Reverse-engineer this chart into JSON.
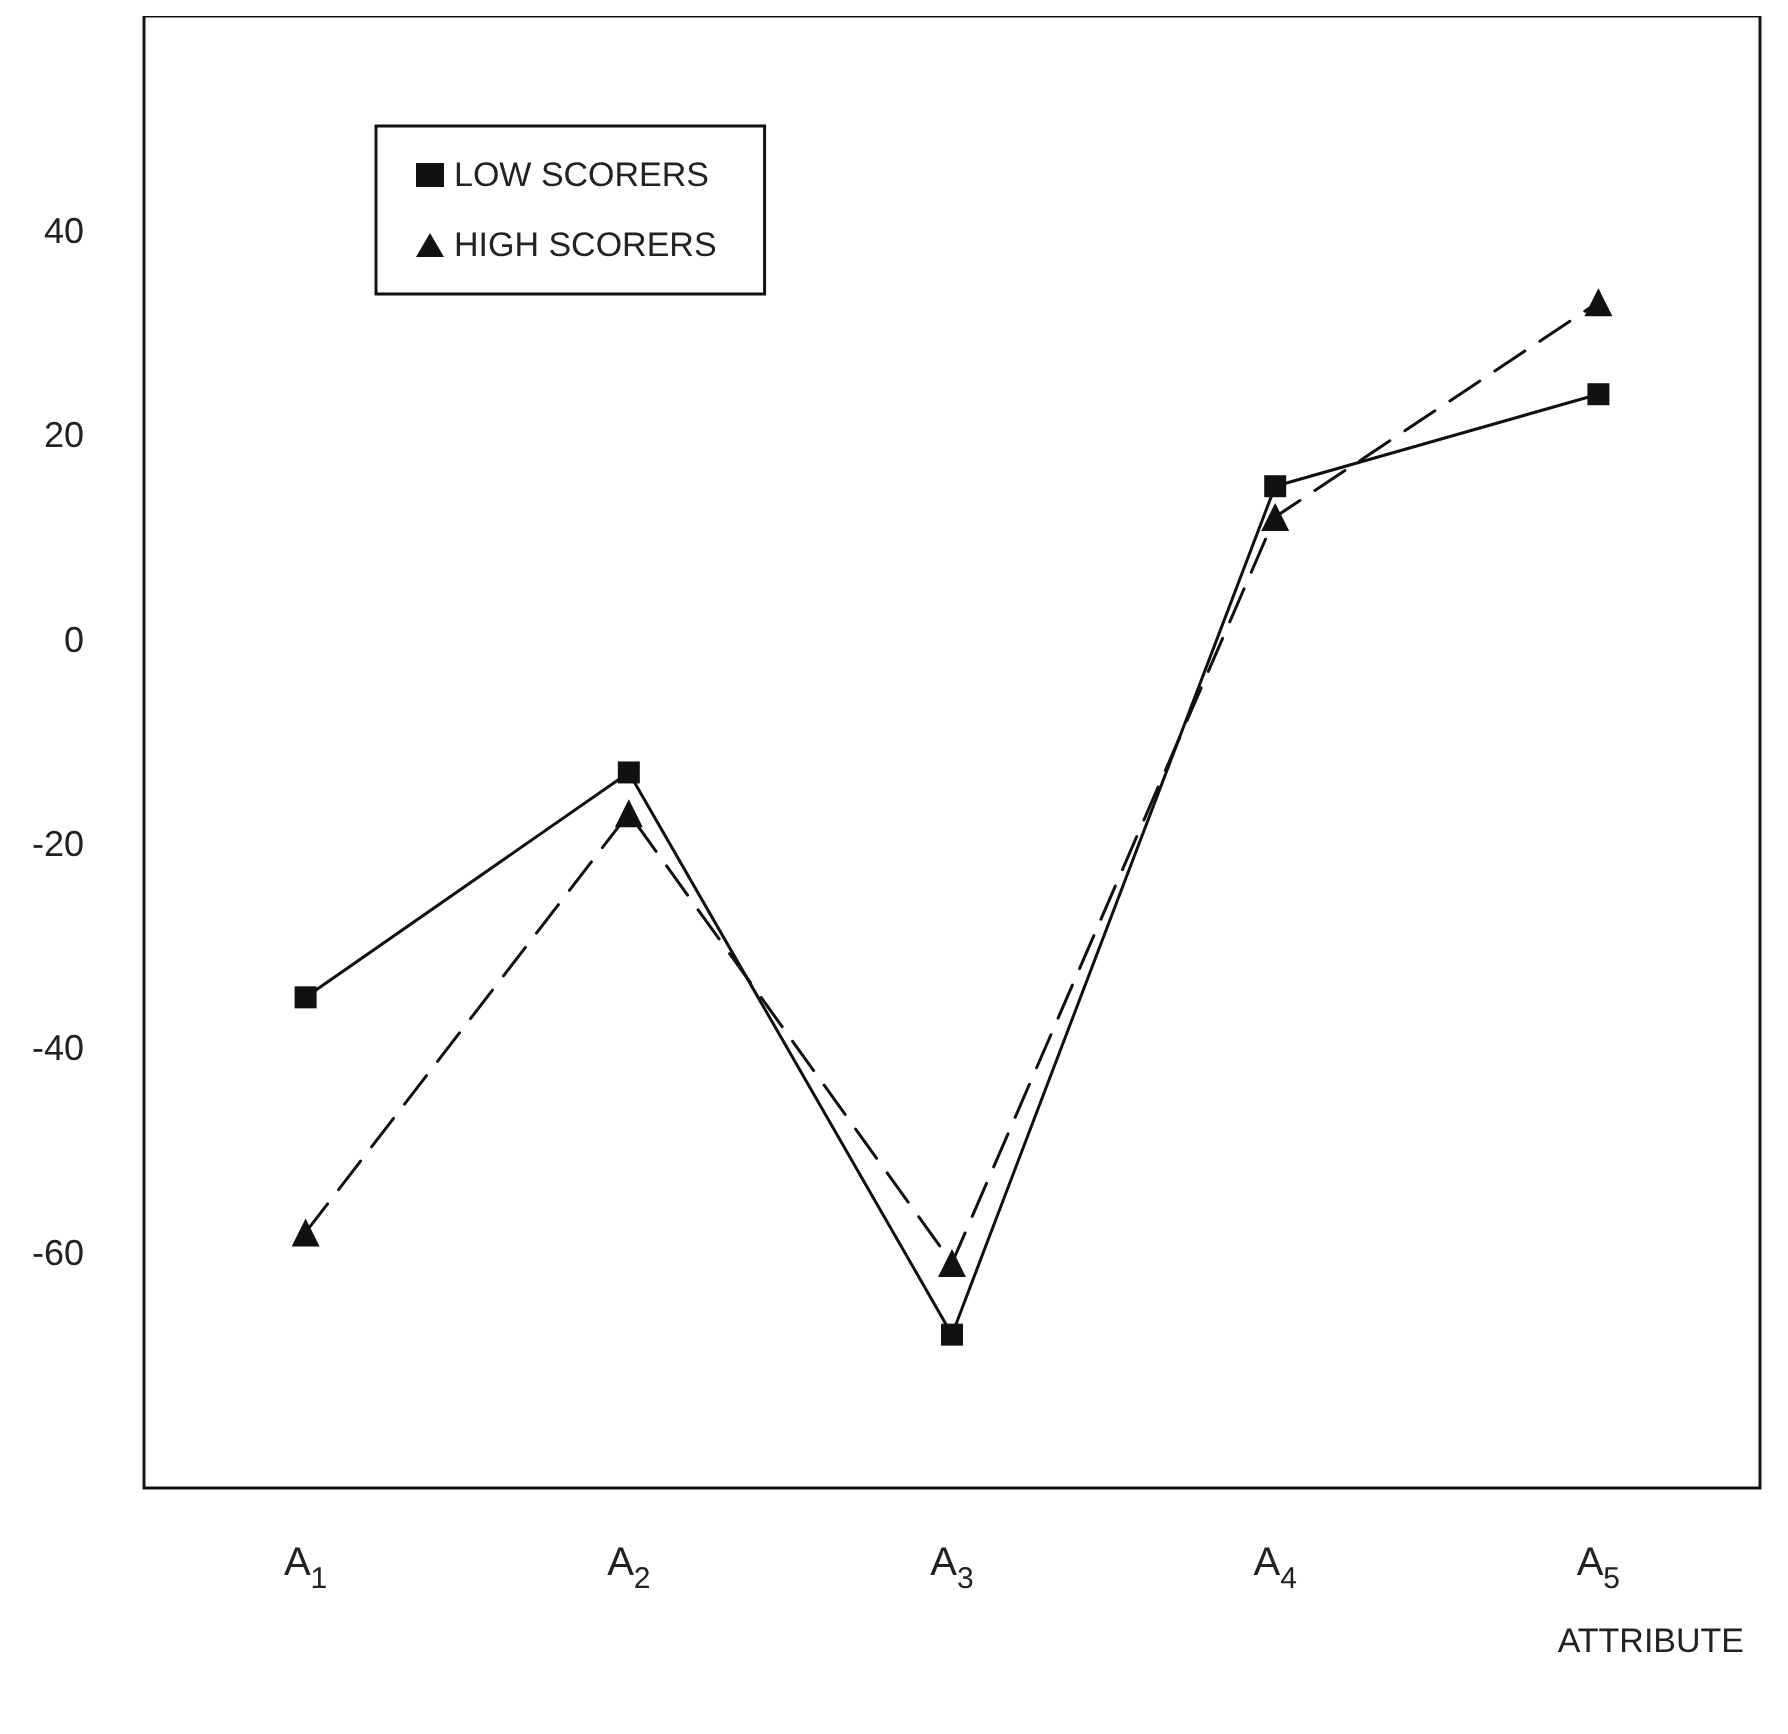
{
  "chart_data": {
    "type": "line",
    "xlabel": "ATTRIBUTE",
    "categories": [
      "A$_{1}$",
      "A$_{2}$",
      "A$_{3}$",
      "A$_{4}$",
      "A$_{5}$"
    ],
    "series": [
      {
        "name": "LOW SCORERS",
        "color": "#111111",
        "marker": "square",
        "line_style": "solid",
        "values": [
          -35,
          -13,
          -68,
          15,
          24
        ]
      },
      {
        "name": "HIGH SCORERS",
        "color": "#111111",
        "marker": "triangle",
        "line_style": "dashed",
        "values": [
          -58,
          -17,
          -61,
          12,
          33
        ]
      }
    ],
    "ylim": [
      -83,
      61
    ],
    "yticks": [
      -60,
      -40,
      -20,
      0,
      20,
      40
    ],
    "grid": false,
    "legend": "top left"
  }
}
